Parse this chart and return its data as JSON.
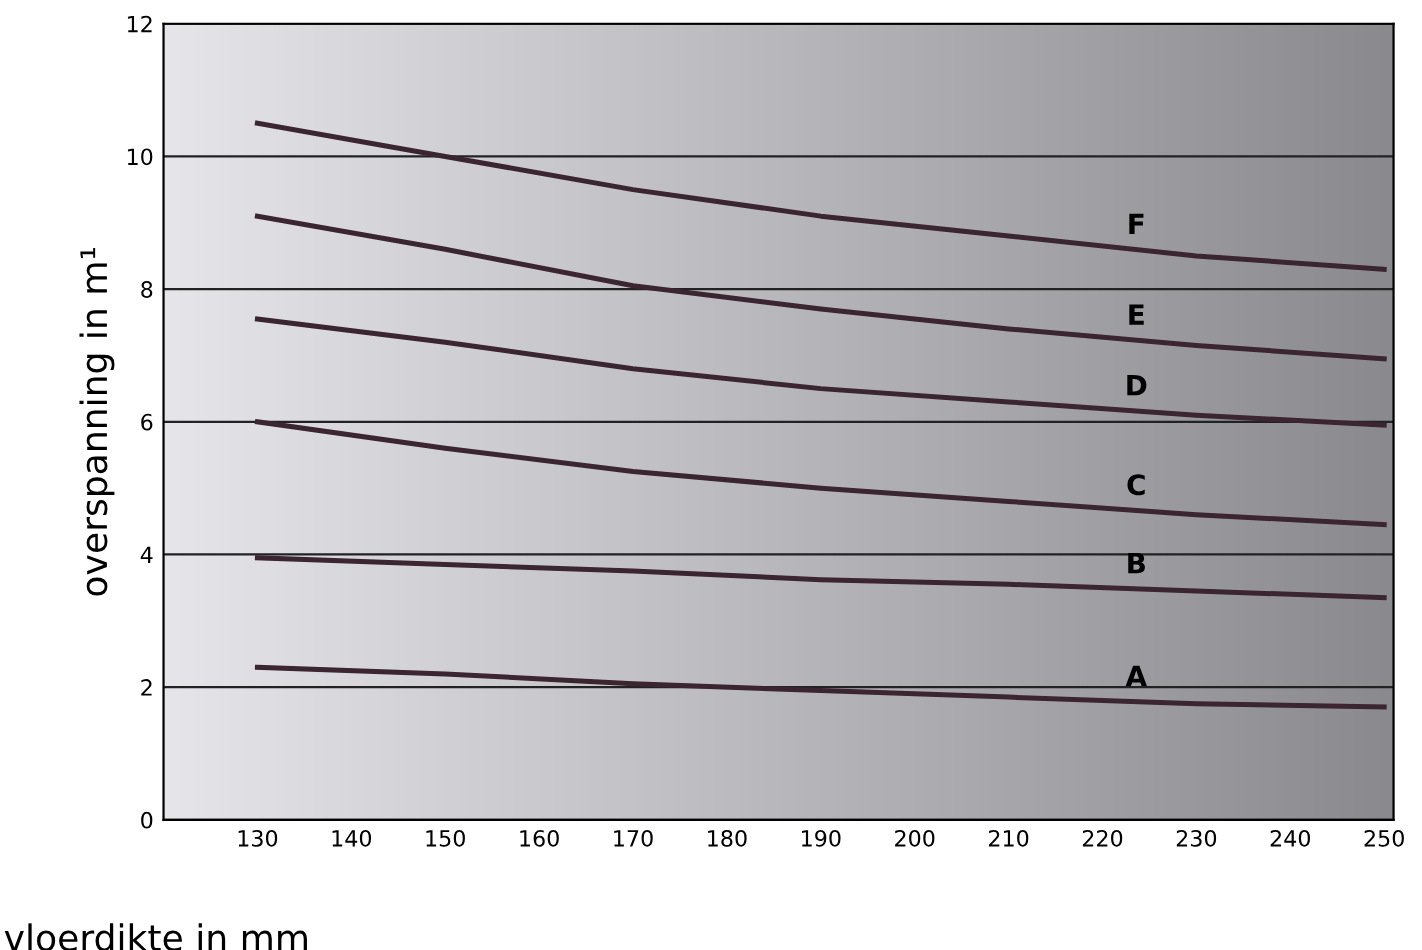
{
  "chart_data": {
    "type": "line",
    "xlabel": "vloerdikte in mm",
    "ylabel": "overspanning in m¹",
    "x": [
      130,
      150,
      170,
      190,
      210,
      230,
      250
    ],
    "series": [
      {
        "name": "A",
        "color": "#3a2530",
        "values": [
          2.3,
          2.2,
          2.05,
          1.95,
          1.85,
          1.75,
          1.7
        ]
      },
      {
        "name": "B",
        "color": "#3a2530",
        "values": [
          3.95,
          3.85,
          3.75,
          3.62,
          3.55,
          3.45,
          3.35
        ]
      },
      {
        "name": "C",
        "color": "#3a2530",
        "values": [
          6.0,
          5.6,
          5.25,
          5.0,
          4.8,
          4.6,
          4.45
        ]
      },
      {
        "name": "D",
        "color": "#3a2530",
        "values": [
          7.55,
          7.2,
          6.8,
          6.5,
          6.3,
          6.1,
          5.95
        ]
      },
      {
        "name": "E",
        "color": "#3a2530",
        "values": [
          9.1,
          8.6,
          8.05,
          7.7,
          7.4,
          7.15,
          6.95
        ]
      },
      {
        "name": "F",
        "color": "#3a2530",
        "values": [
          10.5,
          10.0,
          9.5,
          9.1,
          8.8,
          8.5,
          8.3
        ]
      }
    ],
    "xlim": [
      120,
      251
    ],
    "ylim": [
      0,
      12
    ],
    "xticks": [
      130,
      140,
      150,
      160,
      170,
      180,
      190,
      200,
      210,
      220,
      230,
      240,
      250
    ],
    "yticks": [
      0,
      2,
      4,
      6,
      8,
      10,
      12
    ],
    "grid": "y",
    "legend": false,
    "marker": "none",
    "line_style": "solid"
  }
}
